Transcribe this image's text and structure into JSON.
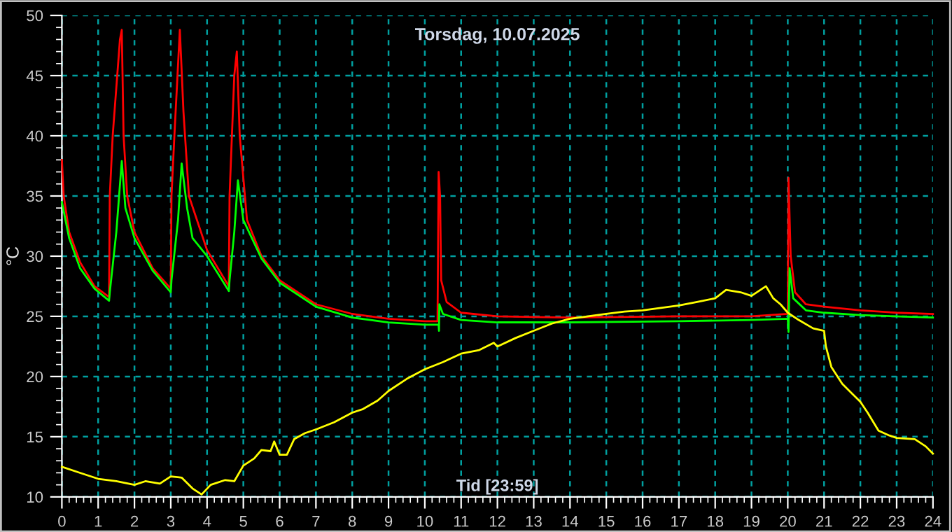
{
  "chart_data": {
    "type": "line",
    "title": "Torsdag, 10.07.2025",
    "xlabel": "Tid [23:59]",
    "ylabel": "°C",
    "xlim": [
      0,
      24
    ],
    "xticks": [
      0,
      1,
      2,
      3,
      4,
      5,
      6,
      7,
      8,
      9,
      10,
      11,
      12,
      13,
      14,
      15,
      16,
      17,
      18,
      19,
      20,
      21,
      22,
      23,
      24
    ],
    "ylim": [
      10,
      50
    ],
    "yticks": [
      10,
      15,
      20,
      25,
      30,
      35,
      40,
      45,
      50
    ],
    "grid": true,
    "marker": "none",
    "line_style": "solid",
    "series": [
      {
        "color": "#ff0000",
        "x": [
          0,
          0.05,
          0.2,
          0.5,
          0.9,
          1.3,
          1.32,
          1.4,
          1.6,
          1.65,
          1.7,
          1.8,
          2.0,
          2.5,
          3.0,
          3.02,
          3.1,
          3.25,
          3.35,
          3.5,
          4.0,
          4.6,
          4.62,
          4.75,
          4.82,
          4.9,
          5.1,
          5.5,
          6.0,
          7,
          8,
          9,
          10,
          10.35,
          10.38,
          10.42,
          10.45,
          10.6,
          11,
          12,
          14,
          17,
          19,
          20,
          20.02,
          20.08,
          20.2,
          20.5,
          21,
          22,
          23,
          24
        ],
        "values": [
          38,
          35,
          32,
          29.5,
          27.5,
          26.6,
          35,
          40,
          48,
          48.8,
          40,
          35,
          32,
          29,
          27.3,
          35,
          40,
          48.8,
          42,
          35,
          30.5,
          27.5,
          35,
          45,
          47,
          40,
          33,
          30,
          28,
          26,
          25.2,
          24.8,
          24.6,
          24.6,
          37,
          35,
          28,
          26.2,
          25.3,
          25,
          24.9,
          25,
          25,
          25.2,
          36.5,
          30,
          27,
          26,
          25.8,
          25.5,
          25.3,
          25.2
        ]
      },
      {
        "color": "#00ff00",
        "x": [
          0,
          0.1,
          0.2,
          0.5,
          0.9,
          1.3,
          1.32,
          1.5,
          1.65,
          1.75,
          2.0,
          2.5,
          3.0,
          3.02,
          3.2,
          3.3,
          3.45,
          3.6,
          4.0,
          4.6,
          4.62,
          4.75,
          4.85,
          5.0,
          5.5,
          6,
          7,
          8,
          9,
          10,
          10.38,
          10.39,
          10.4,
          10.5,
          11,
          12,
          14,
          17,
          19,
          20,
          20.02,
          20.05,
          20.15,
          20.5,
          21,
          22,
          24
        ],
        "values": [
          34.5,
          33,
          31.5,
          29,
          27.3,
          26.3,
          27,
          32,
          37.9,
          34,
          31.5,
          28.8,
          27.0,
          28,
          33,
          37.7,
          34,
          31.5,
          30,
          27.1,
          28,
          32,
          36.3,
          33,
          29.8,
          27.8,
          25.8,
          24.9,
          24.5,
          24.3,
          24.3,
          23.8,
          26,
          25.2,
          24.7,
          24.5,
          24.5,
          24.6,
          24.7,
          24.8,
          23.7,
          29,
          26.5,
          25.5,
          25.3,
          25.1,
          24.9
        ]
      },
      {
        "color": "#ffff00",
        "x": [
          0,
          0.5,
          1,
          1.5,
          2,
          2.3,
          2.7,
          3,
          3.3,
          3.6,
          3.85,
          4.1,
          4.5,
          4.75,
          5.0,
          5.3,
          5.5,
          5.75,
          5.85,
          6.0,
          6.2,
          6.4,
          6.7,
          7.0,
          7.5,
          8,
          8.3,
          8.7,
          9,
          9.5,
          10,
          10.5,
          11,
          11.5,
          11.9,
          12,
          12.5,
          13,
          13.5,
          14,
          14.5,
          15,
          15.5,
          16,
          16.5,
          17,
          17.5,
          18,
          18.3,
          18.7,
          19,
          19.4,
          19.6,
          19.8,
          20.0,
          20.3,
          20.7,
          21.0,
          21.05,
          21.2,
          21.5,
          21.8,
          22.0,
          22.2,
          22.5,
          22.8,
          23,
          23.5,
          23.8,
          24
        ],
        "values": [
          12.5,
          12.0,
          11.5,
          11.3,
          11.0,
          11.3,
          11.1,
          11.7,
          11.6,
          10.7,
          10.2,
          11.0,
          11.4,
          11.3,
          12.6,
          13.2,
          13.9,
          13.8,
          14.6,
          13.5,
          13.5,
          14.8,
          15.3,
          15.6,
          16.2,
          17.0,
          17.3,
          18.0,
          18.8,
          19.8,
          20.6,
          21.2,
          21.9,
          22.2,
          22.8,
          22.5,
          23.2,
          23.8,
          24.4,
          24.8,
          25.0,
          25.2,
          25.4,
          25.5,
          25.7,
          25.9,
          26.2,
          26.5,
          27.2,
          27.0,
          26.7,
          27.5,
          26.5,
          26.0,
          25.3,
          24.7,
          24.0,
          23.8,
          22.5,
          20.8,
          19.4,
          18.5,
          17.9,
          17.0,
          15.5,
          15.1,
          14.9,
          14.8,
          14.2,
          13.6
        ]
      }
    ]
  }
}
